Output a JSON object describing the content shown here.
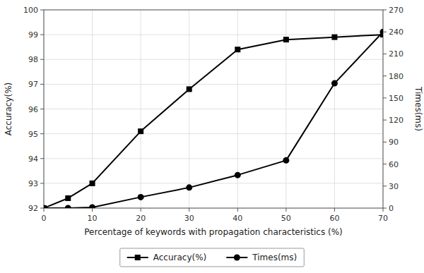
{
  "chart_data": {
    "type": "line",
    "xlabel": "Percentage of keywords with propagation characteristics (%)",
    "ylabel": "Accuracy(%)",
    "y2label": "Times(ms)",
    "x": [
      0,
      5,
      10,
      20,
      30,
      40,
      50,
      60,
      70
    ],
    "series": [
      {
        "name": "Accuracy(%)",
        "color": "#000000",
        "marker": "square",
        "values": [
          92.0,
          92.4,
          93.0,
          95.1,
          96.8,
          98.4,
          98.8,
          98.9,
          99.0
        ]
      },
      {
        "name": "Times(ms)",
        "color": "#000000",
        "marker": "circle",
        "axis": "y2",
        "values": [
          0,
          0,
          1,
          15,
          28,
          45,
          65,
          170,
          240
        ]
      }
    ],
    "xlim": [
      0,
      70
    ],
    "xticks": [
      0,
      10,
      20,
      30,
      40,
      50,
      60,
      70
    ],
    "ylim": [
      92,
      100
    ],
    "yticks": [
      92,
      93,
      94,
      95,
      96,
      97,
      98,
      99,
      100
    ],
    "y2lim": [
      0,
      270
    ],
    "y2ticks": [
      0,
      30,
      60,
      90,
      120,
      150,
      180,
      210,
      240,
      270
    ],
    "grid": true,
    "legend": "bottom"
  }
}
